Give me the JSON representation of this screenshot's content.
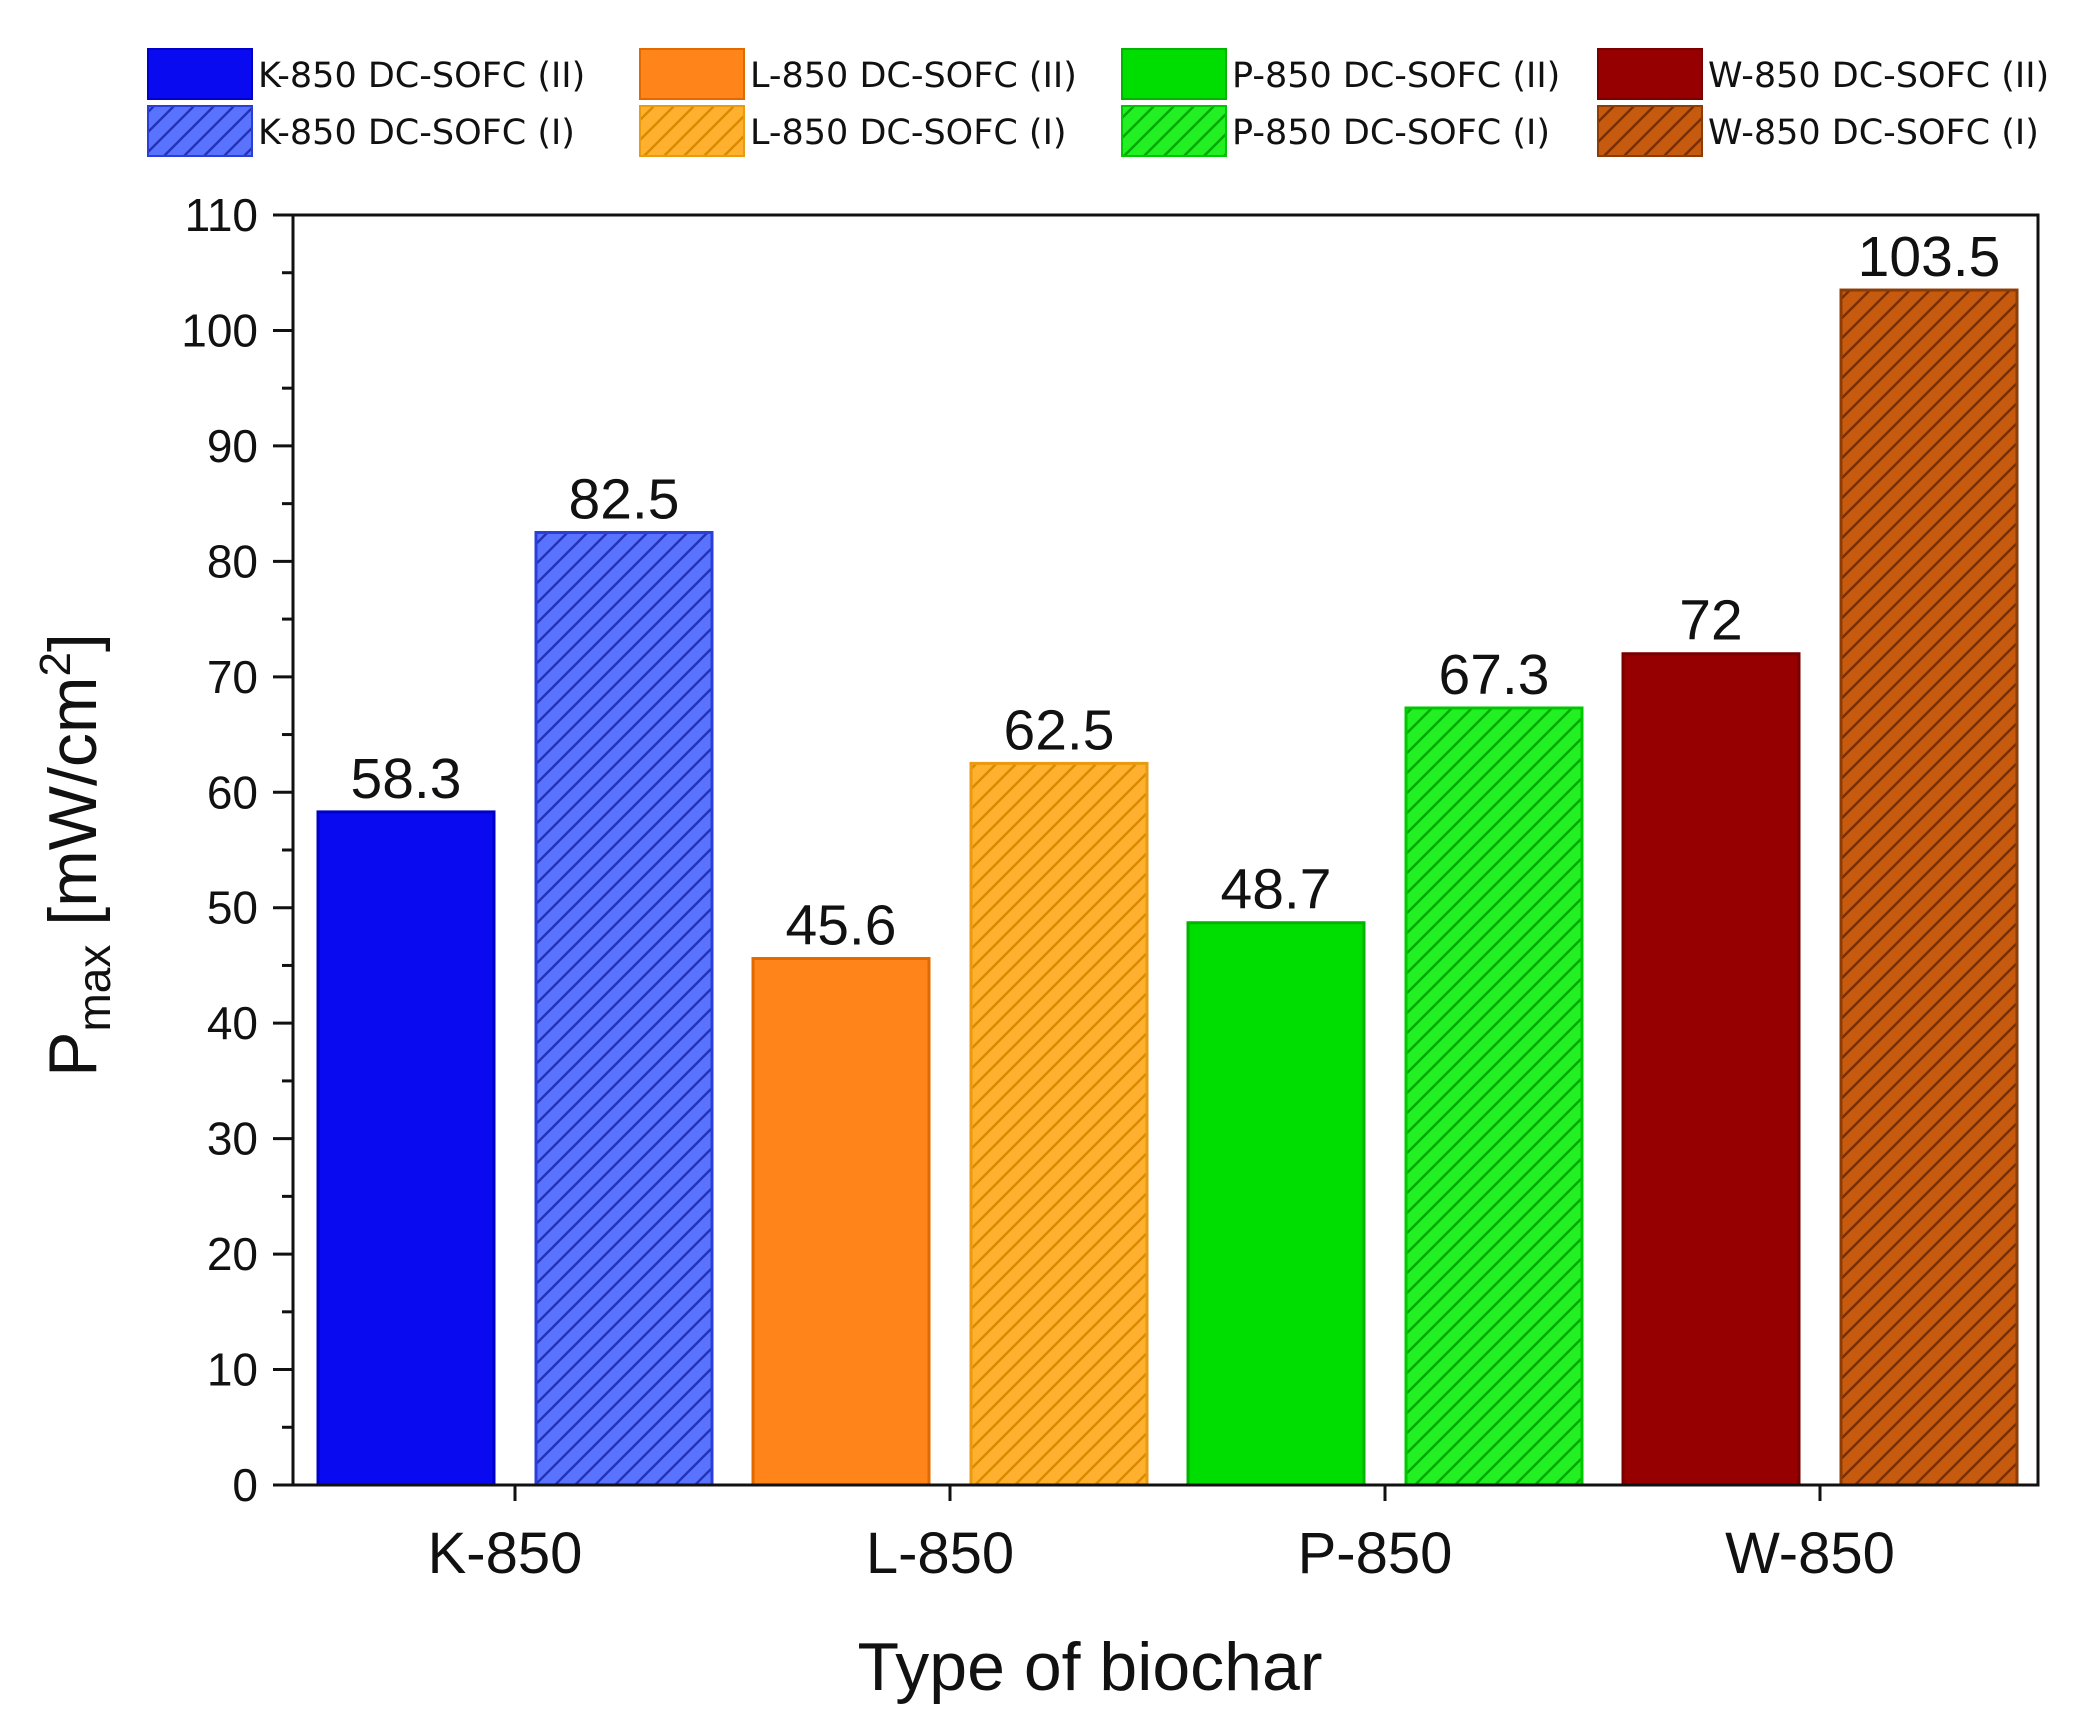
{
  "chart_data": {
    "type": "bar",
    "title": "",
    "xlabel": "Type of biochar",
    "ylabel": {
      "main": "P",
      "sub": "max",
      "unit_open": " [mW/cm",
      "unit_sup": "2",
      "unit_close": "]"
    },
    "ylim": [
      0,
      110
    ],
    "yticks": [
      0,
      10,
      20,
      30,
      40,
      50,
      60,
      70,
      80,
      90,
      100,
      110
    ],
    "grid": false,
    "categories": [
      "K-850",
      "L-850",
      "P-850",
      "W-850"
    ],
    "series": [
      {
        "name": "DC-SOFC (II)",
        "pattern": "solid",
        "values": [
          58.3,
          45.6,
          48.7,
          72
        ]
      },
      {
        "name": "DC-SOFC (I)",
        "pattern": "hatched",
        "values": [
          82.5,
          62.5,
          67.3,
          103.5
        ]
      }
    ],
    "value_labels": [
      [
        "58.3",
        "82.5"
      ],
      [
        "45.6",
        "62.5"
      ],
      [
        "48.7",
        "67.3"
      ],
      [
        "72",
        "103.5"
      ]
    ],
    "legend": {
      "placement": "top",
      "entries": [
        {
          "label": "K-850 DC-SOFC (II)",
          "color": "#0A0AF0",
          "hatched": false
        },
        {
          "label": "K-850 DC-SOFC (I)",
          "color": "#5A73FF",
          "hatched": true
        },
        {
          "label": "L-850 DC-SOFC (II)",
          "color": "#FF8419",
          "hatched": false
        },
        {
          "label": "L-850 DC-SOFC (I)",
          "color": "#FFB02E",
          "hatched": true
        },
        {
          "label": "P-850 DC-SOFC (II)",
          "color": "#00DD00",
          "hatched": false
        },
        {
          "label": "P-850 DC-SOFC (I)",
          "color": "#22F022",
          "hatched": true
        },
        {
          "label": "W-850 DC-SOFC (II)",
          "color": "#960000",
          "hatched": false
        },
        {
          "label": "W-850 DC-SOFC (I)",
          "color": "#C65A0E",
          "hatched": true
        }
      ]
    },
    "bar_colors": [
      [
        "#0A0AF0",
        "#5A73FF"
      ],
      [
        "#FF8419",
        "#FFB02E"
      ],
      [
        "#00DD00",
        "#22F022"
      ],
      [
        "#960000",
        "#C65A0E"
      ]
    ],
    "bar_outlines": [
      [
        "#0000C8",
        "#2B3FD8"
      ],
      [
        "#E06A00",
        "#E89A10"
      ],
      [
        "#00B400",
        "#00C800"
      ],
      [
        "#7A0000",
        "#8E3C06"
      ]
    ],
    "hatch_colors": [
      "#2233B8",
      "#D98A00",
      "#00A800",
      "#7A2E00"
    ]
  }
}
